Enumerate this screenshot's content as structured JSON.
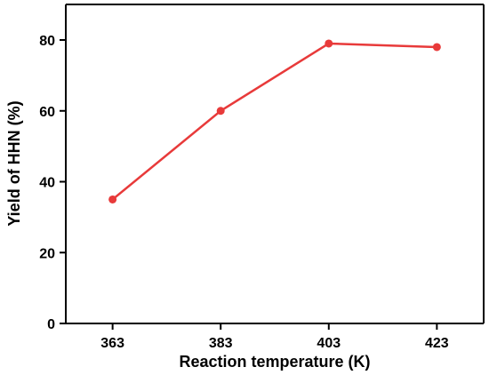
{
  "chart_data": {
    "type": "line",
    "title": "",
    "xlabel": "Reaction temperature (K)",
    "ylabel": "Yield of HHN (%)",
    "categories": [
      "363",
      "383",
      "403",
      "423"
    ],
    "x": [
      363,
      383,
      403,
      423
    ],
    "ylim": [
      0,
      80
    ],
    "yticks": [
      "0",
      "20",
      "40",
      "60",
      "80"
    ],
    "grid": false,
    "legend": "none",
    "series": [
      {
        "values": [
          35,
          60,
          79,
          78
        ],
        "color": "#e83a3a",
        "marker": "circle"
      }
    ]
  }
}
